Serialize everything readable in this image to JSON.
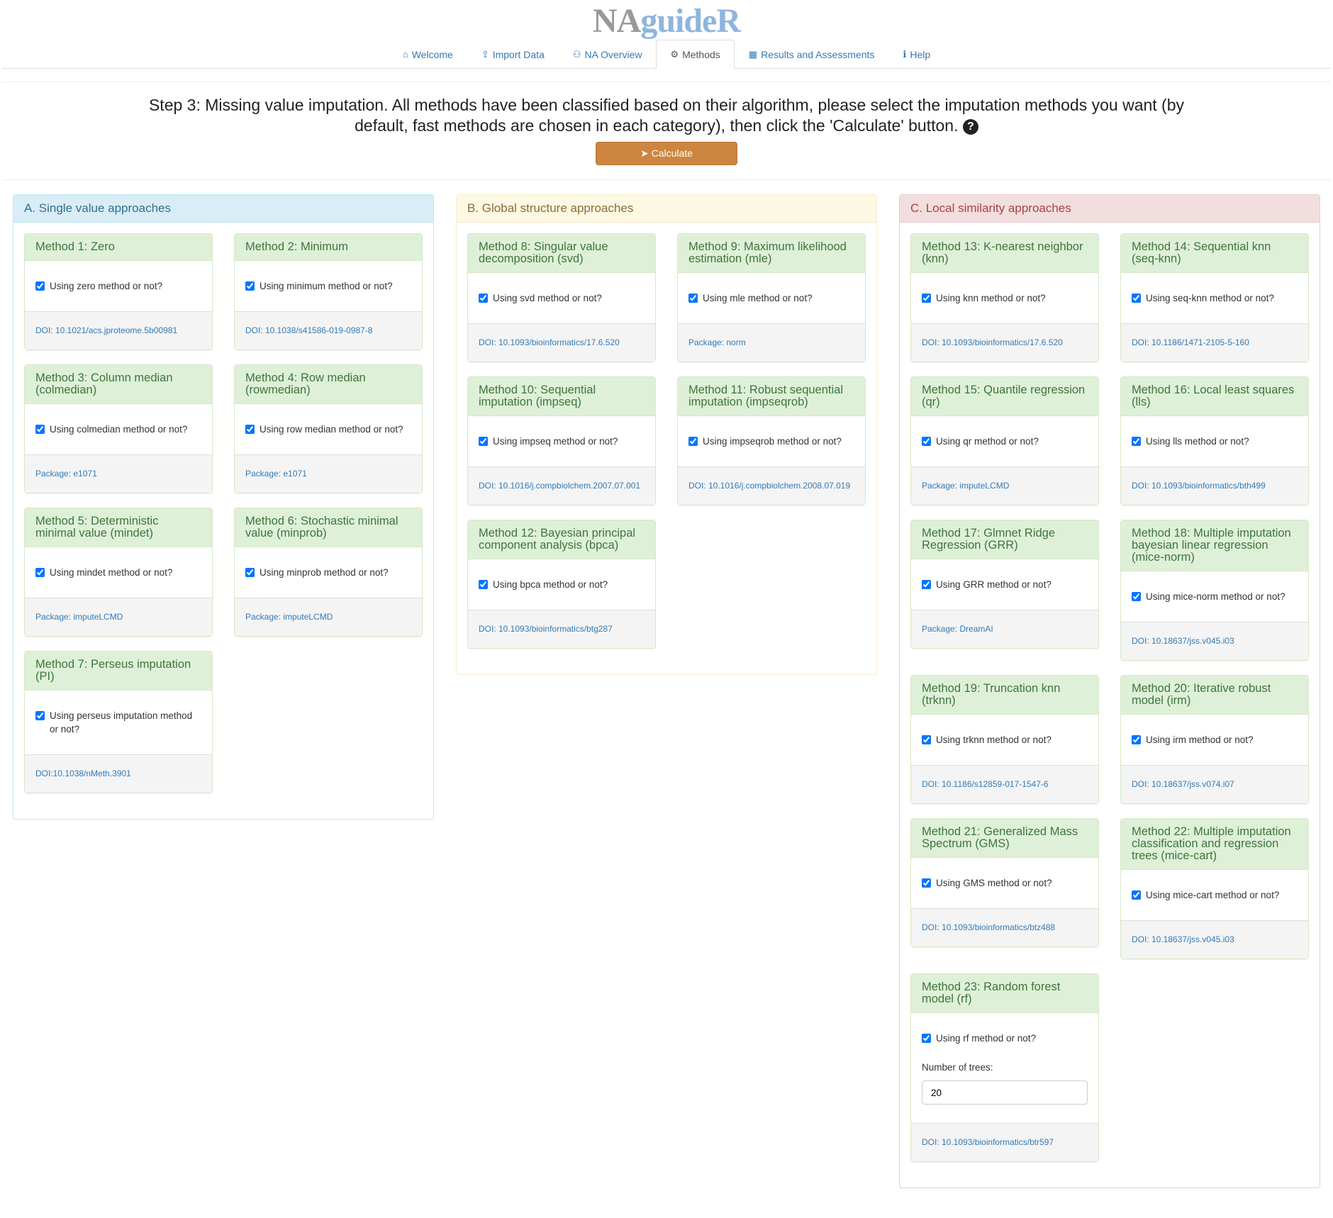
{
  "app": {
    "logo_na": "NA",
    "logo_rest": "guideR"
  },
  "nav": [
    {
      "label": "Welcome",
      "icon": "home-icon",
      "glyph": "⌂"
    },
    {
      "label": "Import Data",
      "icon": "upload-icon",
      "glyph": "⇪"
    },
    {
      "label": "NA Overview",
      "icon": "binoculars-icon",
      "glyph": "⚇"
    },
    {
      "label": "Methods",
      "icon": "cogs-icon",
      "glyph": "⚙",
      "active": true
    },
    {
      "label": "Results and Assessments",
      "icon": "table-icon",
      "glyph": "▦"
    },
    {
      "label": "Help",
      "icon": "info-icon",
      "glyph": "ℹ"
    }
  ],
  "step": {
    "text": "Step 3: Missing value imputation. All methods have been classified based on their algorithm, please select the imputation methods you want (by default, fast methods are chosen in each category), then click the 'Calculate' button.",
    "help_glyph": "?",
    "calculate": "Calculate"
  },
  "colors": {
    "calculate": "#cd853f",
    "card_heading": "#dff0d8",
    "link": "#337ab7"
  },
  "panels": [
    {
      "title": "A. Single value approaches",
      "bg": "#d9edf7",
      "fg": "#31708f",
      "border": "#bce8f1",
      "cards": [
        {
          "title": "Method 1: Zero",
          "check": "Using zero method or not?",
          "footer": "DOI: 10.1021/acs.jproteome.5b00981"
        },
        {
          "title": "Method 2: Minimum",
          "check": "Using minimum method or not?",
          "footer": "DOI: 10.1038/s41586-019-0987-8"
        },
        {
          "title": "Method 3: Column median (colmedian)",
          "check": "Using colmedian method or not?",
          "footer": "Package: e1071"
        },
        {
          "title": "Method 4: Row median (rowmedian)",
          "check": "Using row median method or not?",
          "footer": "Package: e1071"
        },
        {
          "title": "Method 5: Deterministic minimal value (mindet)",
          "check": "Using mindet method or not?",
          "footer": "Package: imputeLCMD"
        },
        {
          "title": "Method 6: Stochastic minimal value (minprob)",
          "check": "Using minprob method or not?",
          "footer": "Package: imputeLCMD"
        },
        {
          "title": "Method 7: Perseus imputation (PI)",
          "check": "Using perseus imputation method or not?",
          "footer": "DOI:10.1038/nMeth.3901"
        }
      ]
    },
    {
      "title": "B. Global structure approaches",
      "bg": "#fcf8e3",
      "fg": "#8a6d3b",
      "border": "#faebcc",
      "cards": [
        {
          "title": "Method 8: Singular value decomposition (svd)",
          "check": "Using svd method or not?",
          "footer": "DOI: 10.1093/bioinformatics/17.6.520"
        },
        {
          "title": "Method 9: Maximum likelihood estimation (mle)",
          "check": "Using mle method or not?",
          "footer": "Package: norm"
        },
        {
          "title": "Method 10: Sequential imputation (impseq)",
          "check": "Using impseq method or not?",
          "footer": "DOI: 10.1016/j.compbiolchem.2007.07.001"
        },
        {
          "title": "Method 11: Robust sequential imputation (impseqrob)",
          "check": "Using impseqrob method or not?",
          "footer": "DOI: 10.1016/j.compbiolchem.2008.07.019"
        },
        {
          "title": "Method 12: Bayesian principal component analysis (bpca)",
          "check": "Using bpca method or not?",
          "footer": "DOI: 10.1093/bioinformatics/btg287"
        }
      ]
    },
    {
      "title": "C. Local similarity approaches",
      "bg": "#f2dede",
      "fg": "#a94442",
      "border": "#ebccd1",
      "cards": [
        {
          "title": "Method 13: K-nearest neighbor (knn)",
          "check": "Using knn method or not?",
          "footer": "DOI: 10.1093/bioinformatics/17.6.520"
        },
        {
          "title": "Method 14: Sequential knn (seq-knn)",
          "check": "Using seq-knn method or not?",
          "footer": "DOI: 10.1186/1471-2105-5-160"
        },
        {
          "title": "Method 15: Quantile regression (qr)",
          "check": "Using qr method or not?",
          "footer": "Package: imputeLCMD"
        },
        {
          "title": "Method 16: Local least squares (lls)",
          "check": "Using lls method or not?",
          "footer": "DOI: 10.1093/bioinformatics/bth499"
        },
        {
          "title": "Method 17: Glmnet Ridge Regression (GRR)",
          "check": "Using GRR method or not?",
          "footer": "Package: DreamAI"
        },
        {
          "title": "Method 18: Multiple imputation bayesian linear regression (mice-norm)",
          "check": "Using mice-norm method or not?",
          "footer": "DOI: 10.18637/jss.v045.i03"
        },
        {
          "title": "Method 19: Truncation knn (trknn)",
          "check": "Using trknn method or not?",
          "footer": "DOI: 10.1186/s12859-017-1547-6"
        },
        {
          "title": "Method 20: Iterative robust model (irm)",
          "check": "Using irm method or not?",
          "footer": "DOI: 10.18637/jss.v074.i07"
        },
        {
          "title": "Method 21: Generalized Mass Spectrum (GMS)",
          "check": "Using GMS method or not?",
          "footer": "DOI: 10.1093/bioinformatics/btz488"
        },
        {
          "title": "Method 22: Multiple imputation classification and regression trees (mice-cart)",
          "check": "Using mice-cart method or not?",
          "footer": "DOI: 10.18637/jss.v045.i03"
        },
        {
          "title": "Method 23: Random forest model (rf)",
          "check": "Using rf method or not?",
          "extra_label": "Number of trees:",
          "extra_value": "20",
          "footer": "DOI: 10.1093/bioinformatics/btr597"
        }
      ]
    }
  ]
}
